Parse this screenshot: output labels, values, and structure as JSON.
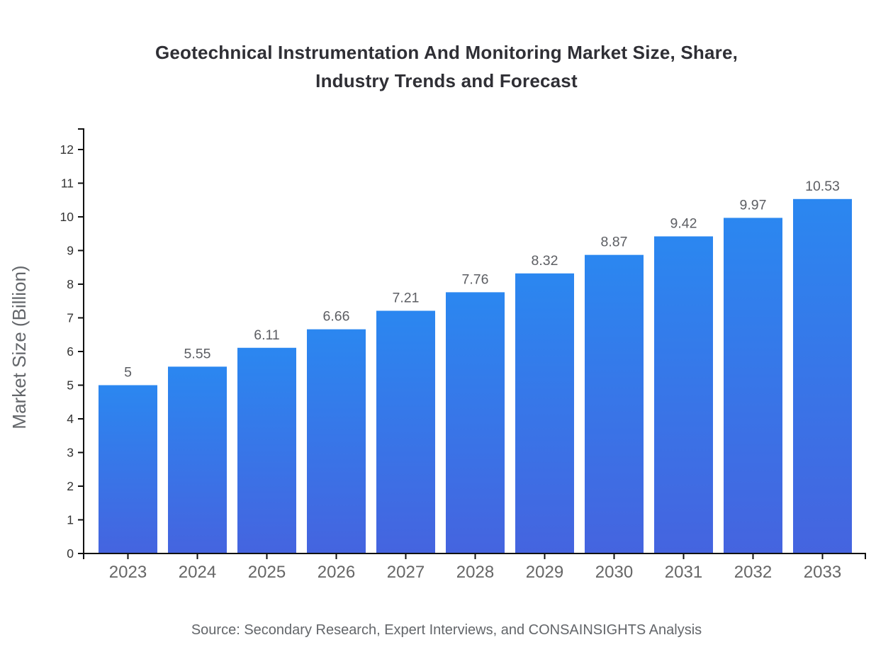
{
  "header": {
    "title_line1": "Geotechnical Instrumentation And Monitoring Market Size, Share,",
    "title_line2": "Industry Trends and Forecast"
  },
  "footer": {
    "source": "Source: Secondary Research, Expert Interviews, and CONSAINSIGHTS Analysis"
  },
  "chart_data": {
    "type": "bar",
    "title": "Geotechnical Instrumentation And Monitoring Market Size, Share, Industry Trends and Forecast",
    "categories": [
      "2023",
      "2024",
      "2025",
      "2026",
      "2027",
      "2028",
      "2029",
      "2030",
      "2031",
      "2032",
      "2033"
    ],
    "values": [
      5,
      5.55,
      6.11,
      6.66,
      7.21,
      7.76,
      8.32,
      8.87,
      9.42,
      9.97,
      10.53
    ],
    "value_labels": [
      "5",
      "5.55",
      "6.11",
      "6.66",
      "7.21",
      "7.76",
      "8.32",
      "8.87",
      "9.42",
      "9.97",
      "10.53"
    ],
    "xlabel": "",
    "ylabel": "Market Size (Billion)",
    "ylim": [
      0,
      12.61
    ],
    "yticks": [
      0,
      1,
      2,
      3,
      4,
      5,
      6,
      7,
      8,
      9,
      10,
      11,
      12
    ],
    "grid": false,
    "legend": "none",
    "source": "Source: Secondary Research, Expert Interviews, and CONSAINSIGHTS Analysis",
    "colors": {
      "bar_gradient_top": "#2B87F0",
      "bar_gradient_bottom": "#4564DF",
      "axis": "#111111",
      "ytick_label": "#333333",
      "xtick_label": "#666666",
      "value_label": "#5c5e63",
      "title": "#2f2f35",
      "muted_text": "#63666a"
    }
  }
}
